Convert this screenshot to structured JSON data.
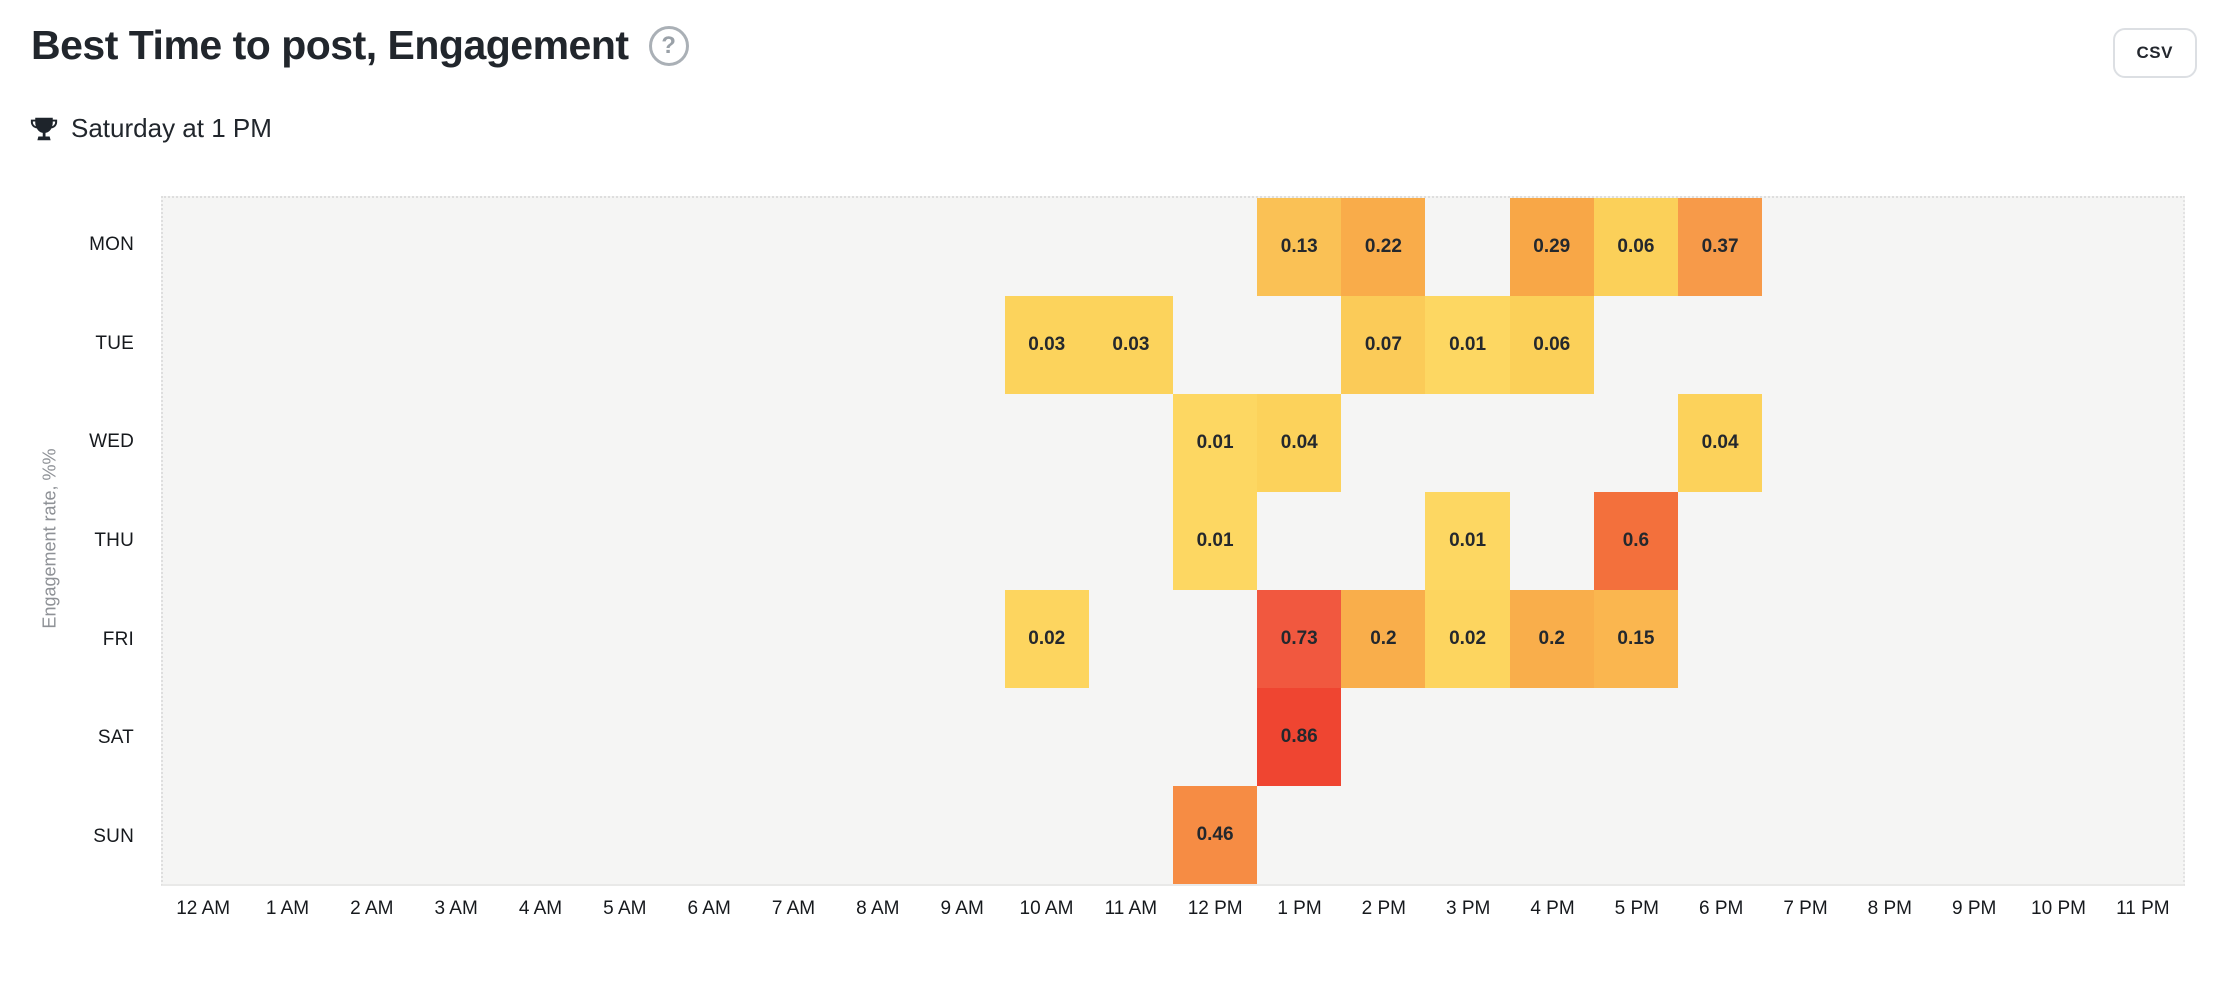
{
  "header": {
    "title": "Best Time to post, Engagement",
    "help_icon": "question-mark-circle-icon",
    "csv_button_label": "CSV"
  },
  "best_time": {
    "icon": "trophy-icon",
    "text": "Saturday at 1 PM"
  },
  "chart_data": {
    "type": "heatmap",
    "title": "Best Time to post, Engagement",
    "xlabel": "",
    "ylabel": "Engagement rate, %%",
    "rows": [
      "MON",
      "TUE",
      "WED",
      "THU",
      "FRI",
      "SAT",
      "SUN"
    ],
    "columns": [
      "12 AM",
      "1 AM",
      "2 AM",
      "3 AM",
      "4 AM",
      "5 AM",
      "6 AM",
      "7 AM",
      "8 AM",
      "9 AM",
      "10 AM",
      "11 AM",
      "12 PM",
      "1 PM",
      "2 PM",
      "3 PM",
      "4 PM",
      "5 PM",
      "6 PM",
      "7 PM",
      "8 PM",
      "9 PM",
      "10 PM",
      "11 PM"
    ],
    "plot_background": "#f5f5f4",
    "legend": "none",
    "grid": "off",
    "cells": [
      {
        "day": "MON",
        "hour": "1 PM",
        "row": 0,
        "col": 13,
        "value": 0.13,
        "label": "0.13",
        "color": "#FAC155"
      },
      {
        "day": "MON",
        "hour": "2 PM",
        "row": 0,
        "col": 14,
        "value": 0.22,
        "label": "0.22",
        "color": "#F9AC4A"
      },
      {
        "day": "MON",
        "hour": "4 PM",
        "row": 0,
        "col": 16,
        "value": 0.29,
        "label": "0.29",
        "color": "#F8A747"
      },
      {
        "day": "MON",
        "hour": "5 PM",
        "row": 0,
        "col": 17,
        "value": 0.06,
        "label": "0.06",
        "color": "#FBD059"
      },
      {
        "day": "MON",
        "hour": "6 PM",
        "row": 0,
        "col": 18,
        "value": 0.37,
        "label": "0.37",
        "color": "#F79A49"
      },
      {
        "day": "TUE",
        "hour": "10 AM",
        "row": 1,
        "col": 10,
        "value": 0.03,
        "label": "0.03",
        "color": "#FCD35C"
      },
      {
        "day": "TUE",
        "hour": "11 AM",
        "row": 1,
        "col": 11,
        "value": 0.03,
        "label": "0.03",
        "color": "#FCD35C"
      },
      {
        "day": "TUE",
        "hour": "2 PM",
        "row": 1,
        "col": 14,
        "value": 0.07,
        "label": "0.07",
        "color": "#FBCB58"
      },
      {
        "day": "TUE",
        "hour": "3 PM",
        "row": 1,
        "col": 15,
        "value": 0.01,
        "label": "0.01",
        "color": "#FDD762"
      },
      {
        "day": "TUE",
        "hour": "4 PM",
        "row": 1,
        "col": 16,
        "value": 0.06,
        "label": "0.06",
        "color": "#FBD059"
      },
      {
        "day": "WED",
        "hour": "12 PM",
        "row": 2,
        "col": 12,
        "value": 0.01,
        "label": "0.01",
        "color": "#FDD762"
      },
      {
        "day": "WED",
        "hour": "1 PM",
        "row": 2,
        "col": 13,
        "value": 0.04,
        "label": "0.04",
        "color": "#FCD25B"
      },
      {
        "day": "WED",
        "hour": "6 PM",
        "row": 2,
        "col": 18,
        "value": 0.04,
        "label": "0.04",
        "color": "#FCD25B"
      },
      {
        "day": "THU",
        "hour": "12 PM",
        "row": 3,
        "col": 12,
        "value": 0.01,
        "label": "0.01",
        "color": "#FDD762"
      },
      {
        "day": "THU",
        "hour": "3 PM",
        "row": 3,
        "col": 15,
        "value": 0.01,
        "label": "0.01",
        "color": "#FDD762"
      },
      {
        "day": "THU",
        "hour": "5 PM",
        "row": 3,
        "col": 17,
        "value": 0.6,
        "label": "0.6",
        "color": "#F3703C"
      },
      {
        "day": "FRI",
        "hour": "10 AM",
        "row": 4,
        "col": 10,
        "value": 0.02,
        "label": "0.02",
        "color": "#FDD55F"
      },
      {
        "day": "FRI",
        "hour": "1 PM",
        "row": 4,
        "col": 13,
        "value": 0.73,
        "label": "0.73",
        "color": "#F1583F"
      },
      {
        "day": "FRI",
        "hour": "2 PM",
        "row": 4,
        "col": 14,
        "value": 0.2,
        "label": "0.2",
        "color": "#F9AE4B"
      },
      {
        "day": "FRI",
        "hour": "3 PM",
        "row": 4,
        "col": 15,
        "value": 0.02,
        "label": "0.02",
        "color": "#FDD55F"
      },
      {
        "day": "FRI",
        "hour": "4 PM",
        "row": 4,
        "col": 16,
        "value": 0.2,
        "label": "0.2",
        "color": "#F9AE4B"
      },
      {
        "day": "FRI",
        "hour": "5 PM",
        "row": 4,
        "col": 17,
        "value": 0.15,
        "label": "0.15",
        "color": "#FAB64F"
      },
      {
        "day": "SAT",
        "hour": "1 PM",
        "row": 5,
        "col": 13,
        "value": 0.86,
        "label": "0.86",
        "color": "#EF4531"
      },
      {
        "day": "SUN",
        "hour": "12 PM",
        "row": 6,
        "col": 12,
        "value": 0.46,
        "label": "0.46",
        "color": "#F68C44"
      }
    ]
  }
}
